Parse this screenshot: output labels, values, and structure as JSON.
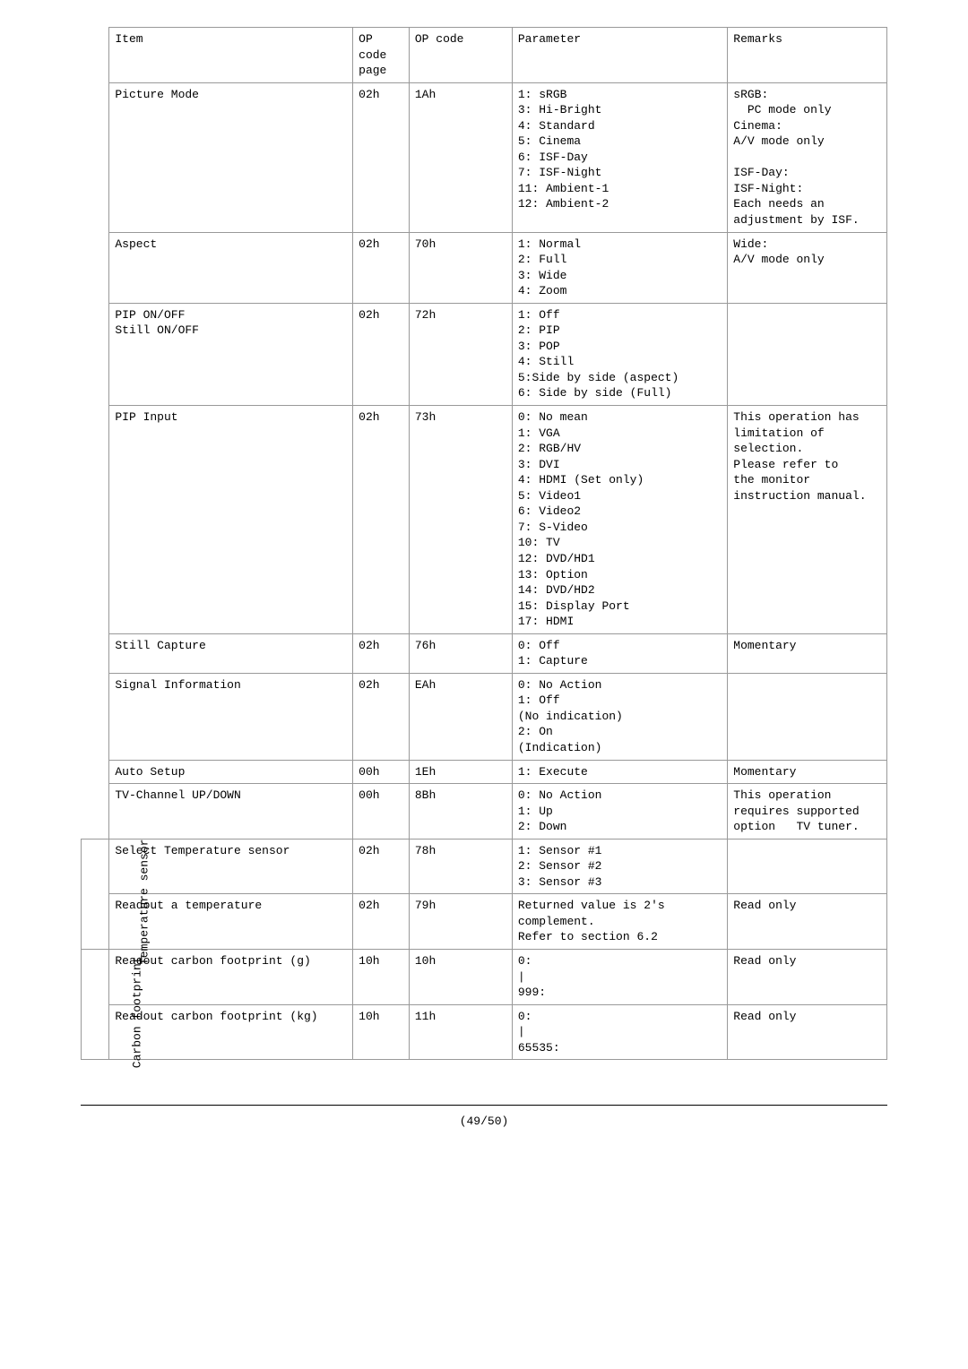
{
  "header": {
    "item": "Item",
    "op_code_page": "OP code page",
    "op_code": "OP code",
    "parameter": "Parameter",
    "remarks": "Remarks"
  },
  "sidebar": {
    "temp_sensor": "Temperature\nsensor",
    "carbon": "Carbon\nfootprint"
  },
  "footer": "(49/50)",
  "rows": [
    {
      "item": "Picture Mode",
      "page": "02h",
      "code": "1Ah",
      "param": "1: sRGB\n3: Hi-Bright\n4: Standard\n5: Cinema\n6: ISF-Day\n7: ISF-Night\n11: Ambient-1\n12: Ambient-2",
      "remarks": "sRGB:\n  PC mode only\nCinema:\nA/V mode only\n\nISF-Day:\nISF-Night:\nEach needs an adjustment by ISF."
    },
    {
      "item": "Aspect",
      "page": "02h",
      "code": "70h",
      "param": "1: Normal\n2: Full\n3: Wide\n4: Zoom",
      "remarks": "Wide:\nA/V mode only"
    },
    {
      "item": "PIP ON/OFF\nStill ON/OFF",
      "page": "02h",
      "code": "72h",
      "param": "1: Off\n2: PIP\n3: POP\n4: Still\n5:Side by side (aspect)\n6: Side by side (Full)",
      "remarks": ""
    },
    {
      "item": "PIP Input",
      "page": "02h",
      "code": "73h",
      "param": "0: No mean\n1: VGA\n2: RGB/HV\n3: DVI\n4: HDMI (Set only)\n5: Video1\n6: Video2\n7: S-Video\n10: TV\n12: DVD/HD1\n13: Option\n14: DVD/HD2\n15: Display Port\n17: HDMI",
      "remarks": "This operation has limitation of selection.\nPlease refer to     the monitor instruction manual."
    },
    {
      "item": "Still Capture",
      "page": "02h",
      "code": "76h",
      "param": "0: Off\n1: Capture",
      "remarks": "Momentary"
    },
    {
      "item": "Signal Information",
      "page": "02h",
      "code": "EAh",
      "param": "0: No Action\n1: Off\n(No indication)\n2: On\n(Indication)",
      "remarks": ""
    },
    {
      "item": "Auto Setup",
      "page": "00h",
      "code": "1Eh",
      "param": "1: Execute",
      "remarks": "Momentary"
    },
    {
      "item": "TV-Channel UP/DOWN",
      "page": "00h",
      "code": "8Bh",
      "param": "0: No Action\n1: Up\n2: Down",
      "remarks": "This operation requires supported option   TV tuner."
    },
    {
      "item": "Select Temperature sensor",
      "page": "02h",
      "code": "78h",
      "param": "1: Sensor #1\n2: Sensor #2\n3: Sensor #3",
      "remarks": ""
    },
    {
      "item": "Readout a temperature",
      "page": "02h",
      "code": "79h",
      "param": "Returned value is 2's complement.\nRefer to section 6.2",
      "remarks": "Read only"
    },
    {
      "item": "Readout carbon footprint (g)",
      "page": "10h",
      "code": "10h",
      "param": "0:\n|\n999:",
      "remarks": "Read only"
    },
    {
      "item": "Readout carbon footprint (kg)",
      "page": "10h",
      "code": "11h",
      "param": "0:\n|\n65535:",
      "remarks": "Read only"
    }
  ]
}
